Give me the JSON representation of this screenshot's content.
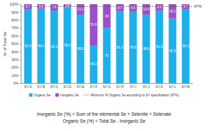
{
  "chart_data": {
    "type": "bar",
    "stacked": true,
    "data_labels": true,
    "legend": "bottom",
    "grid": false,
    "y_label": "% of Total Se",
    "categories": [
      "SY-A",
      "SY-B",
      "SY-C",
      "SY-D",
      "SY-E",
      "SY-F",
      "SY-G",
      "SY-H",
      "SY-I",
      "SY-J",
      "SY-K",
      "SY-L",
      "SY-M"
    ],
    "series": [
      {
        "name": "Organic Se",
        "color": "#1eb0ea",
        "values": [
          93.3,
          94.2,
          92.1,
          96.2,
          86.9,
          48.2,
          70,
          91.3,
          90.5,
          86.6,
          91.5,
          81.9,
          93.3
        ]
      },
      {
        "name": "Inorganic Se",
        "color": "#9b4fc8",
        "values": [
          6.7,
          5.8,
          7.9,
          3.8,
          13.1,
          51.8,
          30,
          8.7,
          9.5,
          13.4,
          8.5,
          18.1,
          6.7
        ]
      }
    ],
    "ylim": [
      0,
      100
    ],
    "yticks": [
      {
        "value": 0,
        "label": "0%"
      },
      {
        "value": 10,
        "label": "10%"
      },
      {
        "value": 20,
        "label": "20%"
      },
      {
        "value": 30,
        "label": "30%"
      },
      {
        "value": 40,
        "label": "40%"
      },
      {
        "value": 50,
        "label": "50%"
      },
      {
        "value": 60,
        "label": "60%"
      },
      {
        "value": 70,
        "label": "70%"
      },
      {
        "value": 80,
        "label": "80%"
      },
      {
        "value": 90,
        "label": "90%"
      },
      {
        "value": 100,
        "label": "100%"
      }
    ],
    "reference_line": {
      "value": 97,
      "label": "97%",
      "name": "Minimum % Organic Se according to SY specification (97%)"
    },
    "notes": [
      "Inorganic Se (%) = Sum of the elemental Se + Selenite + Selenate",
      "Organic Se (%) = Total Se - Inorganic Se"
    ]
  }
}
